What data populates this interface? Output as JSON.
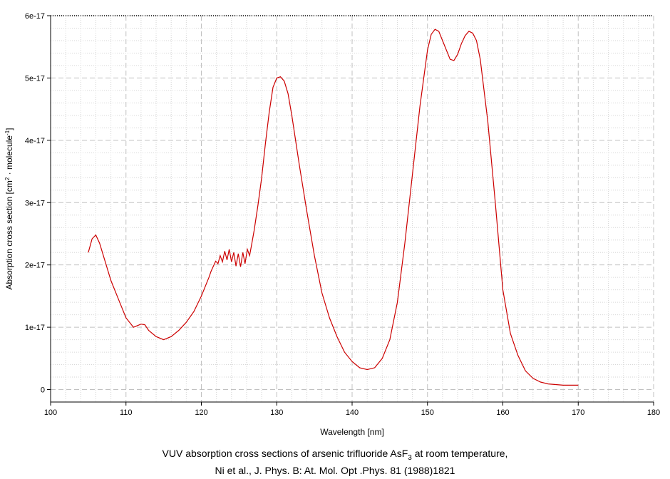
{
  "chart_data": {
    "type": "line",
    "title": "",
    "xlabel": "Wavelength [nm]",
    "ylabel": {
      "base": "Absorption cross section [cm",
      "sup1": "2",
      "mid": " · molecule",
      "sup2": "-1",
      "end": "]"
    },
    "xlim": [
      100,
      180
    ],
    "ylim": [
      -2e-18,
      6e-17
    ],
    "x_ticks": [
      100,
      110,
      120,
      130,
      140,
      150,
      160,
      170,
      180
    ],
    "x_tick_labels": [
      "100",
      "110",
      "120",
      "130",
      "140",
      "150",
      "160",
      "170",
      "180"
    ],
    "y_ticks": [
      0,
      1e-17,
      2e-17,
      3e-17,
      4e-17,
      5e-17,
      6e-17
    ],
    "y_tick_labels": [
      "0",
      "1e-17",
      "2e-17",
      "3e-17",
      "4e-17",
      "5e-17",
      "6e-17"
    ],
    "grid": true,
    "minor_grid": true,
    "line_color": "#cc0000",
    "series": [
      {
        "x": [
          105.0,
          105.5,
          106.0,
          106.5,
          107.0,
          108.0,
          109.0,
          110.0,
          111.0,
          112.0,
          112.5,
          113.0,
          114.0,
          115.0,
          116.0,
          117.0,
          118.0,
          119.0,
          120.0,
          120.5,
          121.0,
          121.3,
          121.6,
          121.9,
          122.2,
          122.5,
          122.8,
          123.1,
          123.4,
          123.7,
          124.0,
          124.3,
          124.6,
          124.9,
          125.2,
          125.5,
          125.8,
          126.1,
          126.4,
          126.7,
          127.0,
          127.5,
          128.0,
          128.5,
          129.0,
          129.5,
          130.0,
          130.5,
          131.0,
          131.5,
          132.0,
          133.0,
          134.0,
          135.0,
          136.0,
          137.0,
          138.0,
          139.0,
          140.0,
          141.0,
          142.0,
          143.0,
          144.0,
          145.0,
          146.0,
          147.0,
          148.0,
          149.0,
          150.0,
          150.5,
          151.0,
          151.5,
          152.0,
          152.5,
          153.0,
          153.5,
          154.0,
          154.5,
          155.0,
          155.5,
          156.0,
          156.5,
          157.0,
          158.0,
          159.0,
          160.0,
          161.0,
          162.0,
          163.0,
          164.0,
          165.0,
          166.0,
          167.0,
          168.0,
          169.0,
          170.0
        ],
        "y": [
          2.2e-17,
          2.42e-17,
          2.48e-17,
          2.35e-17,
          2.15e-17,
          1.75e-17,
          1.45e-17,
          1.15e-17,
          1e-17,
          1.05e-17,
          1.04e-17,
          9.5e-18,
          8.5e-18,
          8e-18,
          8.5e-18,
          9.5e-18,
          1.08e-17,
          1.25e-17,
          1.5e-17,
          1.65e-17,
          1.8e-17,
          1.9e-17,
          1.98e-17,
          2.06e-17,
          2.02e-17,
          2.15e-17,
          2.05e-17,
          2.22e-17,
          2.08e-17,
          2.25e-17,
          2.05e-17,
          2.2e-17,
          1.98e-17,
          2.18e-17,
          1.97e-17,
          2.2e-17,
          2.02e-17,
          2.25e-17,
          2.15e-17,
          2.35e-17,
          2.55e-17,
          2.95e-17,
          3.4e-17,
          3.95e-17,
          4.45e-17,
          4.85e-17,
          5e-17,
          5.02e-17,
          4.95e-17,
          4.75e-17,
          4.4e-17,
          3.6e-17,
          2.85e-17,
          2.15e-17,
          1.55e-17,
          1.15e-17,
          8.5e-18,
          6e-18,
          4.5e-18,
          3.5e-18,
          3.2e-18,
          3.5e-18,
          5e-18,
          8e-18,
          1.4e-17,
          2.35e-17,
          3.45e-17,
          4.55e-17,
          5.45e-17,
          5.7e-17,
          5.78e-17,
          5.75e-17,
          5.6e-17,
          5.45e-17,
          5.3e-17,
          5.28e-17,
          5.38e-17,
          5.55e-17,
          5.68e-17,
          5.75e-17,
          5.72e-17,
          5.6e-17,
          5.3e-17,
          4.3e-17,
          3e-17,
          1.6e-17,
          9e-18,
          5.5e-18,
          3e-18,
          1.8e-18,
          1.2e-18,
          9e-19,
          8e-19,
          7e-19,
          7e-19,
          7e-19
        ]
      }
    ],
    "caption_line1_text": "VUV absorption cross sections of arsenic trifluoride AsF",
    "caption_line1_sub": "3",
    "caption_line1_end": " at room temperature,",
    "caption_line2": "Ni et al., J. Phys. B: At. Mol. Opt .Phys. 81 (1988)1821"
  }
}
